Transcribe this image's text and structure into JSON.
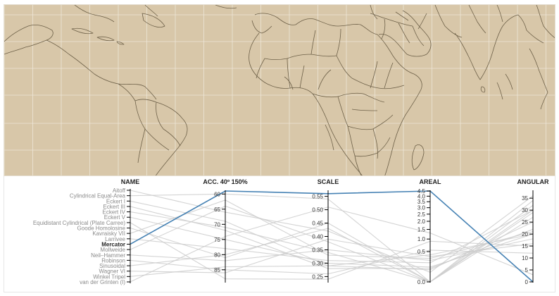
{
  "map": {
    "background": "#d8c7a9",
    "border_color": "#6d6048",
    "graticule_color": "#eee6d8",
    "projection": "Mercator"
  },
  "chart_data": {
    "type": "parallel-coordinates",
    "highlight": "Mercator",
    "highlight_color": "#4682b4",
    "line_color": "#cccccc",
    "axes": [
      {
        "key": "name",
        "label": "NAME"
      },
      {
        "key": "acc",
        "label": "ACC. 40º 150%",
        "domain": [
          59,
          89
        ],
        "ticks": [
          {
            "v": 60,
            "label": "60"
          },
          {
            "v": 65,
            "label": "65"
          },
          {
            "v": 70,
            "label": "70"
          },
          {
            "v": 75,
            "label": "75"
          },
          {
            "v": 80,
            "label": "80"
          },
          {
            "v": 85,
            "label": "85"
          }
        ]
      },
      {
        "key": "scale",
        "label": "SCALE",
        "domain": [
          0.23,
          0.57
        ],
        "ticks": [
          {
            "v": 0.25,
            "label": "0.25"
          },
          {
            "v": 0.3,
            "label": "0.30"
          },
          {
            "v": 0.35,
            "label": "0.35"
          },
          {
            "v": 0.4,
            "label": "0.40"
          },
          {
            "v": 0.45,
            "label": "0.45"
          },
          {
            "v": 0.5,
            "label": "0.50"
          },
          {
            "v": 0.55,
            "label": "0.55"
          }
        ]
      },
      {
        "key": "areal",
        "label": "AREAL",
        "scale": "sqrt",
        "domain": [
          0,
          4.5
        ],
        "ticks": [
          {
            "v": 0,
            "label": "0.0"
          },
          {
            "v": 0.5,
            "label": "0.5"
          },
          {
            "v": 1.0,
            "label": "1.0"
          },
          {
            "v": 1.5,
            "label": "1.5"
          },
          {
            "v": 2.0,
            "label": "2.0"
          },
          {
            "v": 2.5,
            "label": "2.5"
          },
          {
            "v": 3.0,
            "label": "3.0"
          },
          {
            "v": 3.5,
            "label": "3.5"
          },
          {
            "v": 4.0,
            "label": "4.0"
          },
          {
            "v": 4.5,
            "label": "4.5"
          }
        ]
      },
      {
        "key": "angular",
        "label": "ANGULAR",
        "domain": [
          0,
          38
        ],
        "ticks": [
          {
            "v": 0,
            "label": "0"
          },
          {
            "v": 5,
            "label": "5"
          },
          {
            "v": 10,
            "label": "10"
          },
          {
            "v": 15,
            "label": "15"
          },
          {
            "v": 20,
            "label": "20"
          },
          {
            "v": 25,
            "label": "25"
          },
          {
            "v": 30,
            "label": "30"
          },
          {
            "v": 35,
            "label": "35"
          }
        ]
      }
    ],
    "projections": [
      {
        "name": "Aitoff",
        "acc": 66,
        "scale": 0.42,
        "areal": 0.05,
        "angular": 36
      },
      {
        "name": "Cylindrical Equal-Area",
        "acc": 60,
        "scale": 0.54,
        "areal": 0,
        "angular": 30
      },
      {
        "name": "Eckert I",
        "acc": 69,
        "scale": 0.29,
        "areal": 0.08,
        "angular": 25
      },
      {
        "name": "Eckert III",
        "acc": 72,
        "scale": 0.28,
        "areal": 0.1,
        "angular": 22
      },
      {
        "name": "Eckert IV",
        "acc": 71,
        "scale": 0.34,
        "areal": 0,
        "angular": 29
      },
      {
        "name": "Eckert V",
        "acc": 75,
        "scale": 0.3,
        "areal": 0.12,
        "angular": 20
      },
      {
        "name": "Equidistant Cylindrical (Plate Carree)",
        "acc": 88,
        "scale": 0.24,
        "areal": 0.9,
        "angular": 15
      },
      {
        "name": "Goode Homolosine",
        "acc": 81,
        "scale": 0.45,
        "areal": 0,
        "angular": 27
      },
      {
        "name": "Kavraisky VII",
        "acc": 62,
        "scale": 0.33,
        "areal": 0.3,
        "angular": 21
      },
      {
        "name": "Larrivee",
        "acc": 78,
        "scale": 0.31,
        "areal": 0.2,
        "angular": 30
      },
      {
        "name": "Mercator",
        "acc": 59,
        "scale": 0.56,
        "areal": 4.5,
        "angular": 0
      },
      {
        "name": "Mollweide",
        "acc": 64,
        "scale": 0.38,
        "areal": 0,
        "angular": 32
      },
      {
        "name": "Neil–Hammer",
        "acc": 82,
        "scale": 0.35,
        "areal": 0.25,
        "angular": 18
      },
      {
        "name": "Robinson",
        "acc": 85,
        "scale": 0.26,
        "areal": 0.55,
        "angular": 12
      },
      {
        "name": "Sinusoidal",
        "acc": 80,
        "scale": 0.43,
        "areal": 0,
        "angular": 34
      },
      {
        "name": "Wagner VI",
        "acc": 86,
        "scale": 0.39,
        "areal": 0.35,
        "angular": 16
      },
      {
        "name": "Winkel Tripel",
        "acc": 84,
        "scale": 0.29,
        "areal": 0.4,
        "angular": 20
      },
      {
        "name": "van der Grinten (I)",
        "acc": 74,
        "scale": 0.51,
        "areal": 1.3,
        "angular": 3
      }
    ]
  }
}
